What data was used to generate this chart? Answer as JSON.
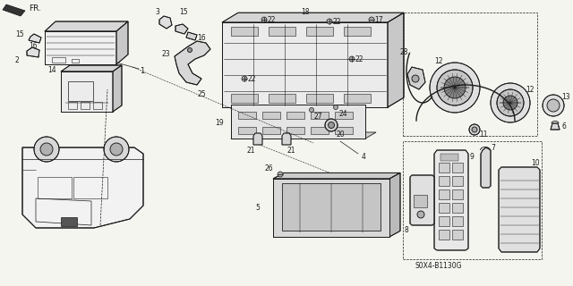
{
  "background_color": "#f5f5f0",
  "line_color": "#1a1a1a",
  "diagram_code": "S0X4-B1130G",
  "fr_label": "FR.",
  "figsize": [
    6.4,
    3.2
  ],
  "dpi": 100,
  "lw": 0.65
}
